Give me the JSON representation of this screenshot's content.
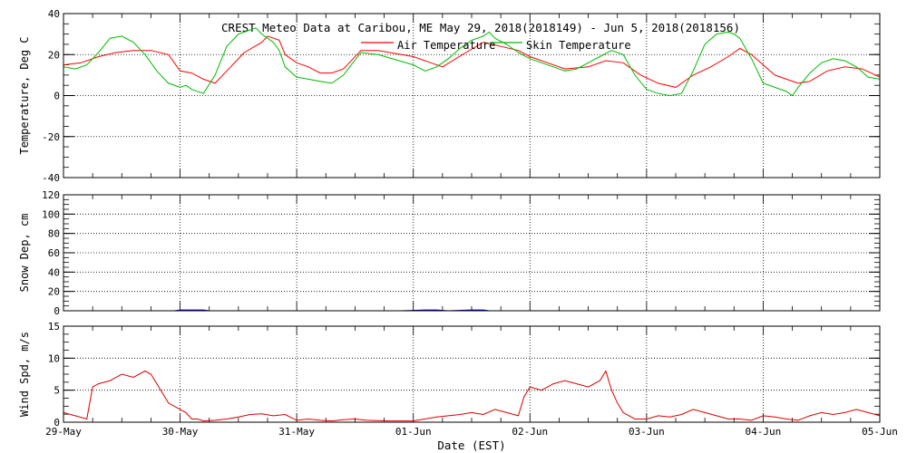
{
  "title": "CREST Meteo Data at Caribou, ME   May 29, 2018(2018149) - Jun  5, 2018(2018156)",
  "x_axis_label": "Date (EST)",
  "colors": {
    "air": "#ff0000",
    "skin": "#00bb00",
    "snow": "#0000cc",
    "wind": "#dd0000",
    "grid": "#000000"
  },
  "chart_data": [
    {
      "type": "line",
      "ylabel": "Temperature, Deg C",
      "ylim": [
        -40,
        40
      ],
      "yticks": [
        -40,
        -20,
        0,
        20,
        40
      ],
      "xlim": [
        0,
        7
      ],
      "xtick_labels": [
        "29-May",
        "30-May",
        "31-May",
        "01-Jun",
        "02-Jun",
        "03-Jun",
        "04-Jun",
        "05-Jun"
      ],
      "grid": true,
      "legend": {
        "placement": "top-center",
        "entries": [
          "Air Temperature",
          "Skin Temperature"
        ]
      },
      "series": [
        {
          "name": "Air Temperature",
          "x": [
            0,
            0.15,
            0.3,
            0.45,
            0.6,
            0.75,
            0.9,
            1.0,
            1.1,
            1.2,
            1.3,
            1.4,
            1.55,
            1.7,
            1.75,
            1.85,
            1.9,
            2.0,
            2.1,
            2.2,
            2.3,
            2.4,
            2.55,
            2.7,
            3.0,
            3.15,
            3.25,
            3.45,
            3.6,
            3.75,
            3.9,
            4.0,
            4.15,
            4.3,
            4.5,
            4.65,
            4.8,
            4.95,
            5.1,
            5.25,
            5.4,
            5.55,
            5.7,
            5.8,
            5.9,
            6.0,
            6.1,
            6.2,
            6.3,
            6.4,
            6.55,
            6.7,
            6.85,
            7.0
          ],
          "y": [
            15,
            16,
            19,
            21,
            22,
            22,
            20,
            12,
            11,
            8,
            6,
            12,
            21,
            26,
            29,
            27,
            20,
            16,
            14,
            11,
            11,
            13,
            22,
            22,
            19,
            16,
            14,
            21,
            26,
            24,
            22,
            19,
            16,
            13,
            14,
            17,
            16,
            10,
            6,
            4,
            10,
            14,
            19,
            23,
            20,
            15,
            10,
            8,
            6,
            7,
            12,
            14,
            13,
            9
          ]
        },
        {
          "name": "Skin Temperature",
          "x": [
            0,
            0.1,
            0.2,
            0.3,
            0.4,
            0.5,
            0.6,
            0.7,
            0.8,
            0.9,
            1.0,
            1.05,
            1.1,
            1.2,
            1.3,
            1.4,
            1.5,
            1.6,
            1.65,
            1.7,
            1.75,
            1.8,
            1.85,
            1.9,
            2.0,
            2.1,
            2.2,
            2.3,
            2.4,
            2.55,
            2.7,
            3.0,
            3.1,
            3.2,
            3.3,
            3.4,
            3.5,
            3.6,
            3.65,
            3.7,
            3.8,
            3.9,
            4.0,
            4.1,
            4.2,
            4.3,
            4.4,
            4.5,
            4.6,
            4.7,
            4.8,
            4.9,
            5.0,
            5.1,
            5.2,
            5.3,
            5.4,
            5.5,
            5.6,
            5.7,
            5.75,
            5.8,
            5.9,
            6.0,
            6.1,
            6.2,
            6.25,
            6.3,
            6.4,
            6.5,
            6.6,
            6.7,
            6.8,
            6.9,
            7.0
          ],
          "y": [
            14,
            13,
            15,
            21,
            28,
            29,
            26,
            20,
            12,
            6,
            4,
            5,
            3,
            1,
            10,
            24,
            30,
            32,
            33,
            30,
            28,
            26,
            22,
            14,
            9,
            8,
            7,
            6,
            10,
            21,
            20,
            15,
            12,
            14,
            18,
            23,
            27,
            29,
            31,
            28,
            25,
            21,
            18,
            16,
            14,
            12,
            13,
            16,
            19,
            22,
            20,
            10,
            3,
            1,
            0,
            1,
            12,
            25,
            30,
            31,
            30,
            28,
            18,
            6,
            4,
            2,
            0,
            4,
            11,
            16,
            18,
            17,
            14,
            9,
            8
          ]
        }
      ]
    },
    {
      "type": "line",
      "ylabel": "Snow Dep, cm",
      "ylim": [
        0,
        120
      ],
      "yticks": [
        0,
        20,
        40,
        60,
        80,
        100,
        120
      ],
      "xlim": [
        0,
        7
      ],
      "grid": true,
      "series": [
        {
          "x": [
            0,
            0.95,
            1.0,
            1.2,
            1.25,
            2.9,
            3.1,
            3.2,
            3.3,
            3.5,
            3.6,
            3.65,
            7.0
          ],
          "y": [
            0,
            0,
            0.8,
            0.8,
            0,
            0,
            0.8,
            0.8,
            0,
            0.8,
            0.8,
            0,
            0
          ]
        }
      ]
    },
    {
      "type": "line",
      "ylabel": "Wind Spd, m/s",
      "ylim": [
        0,
        15
      ],
      "yticks": [
        0,
        5,
        10,
        15
      ],
      "xlim": [
        0,
        7
      ],
      "grid": true,
      "series": [
        {
          "x": [
            0,
            0.1,
            0.2,
            0.25,
            0.3,
            0.4,
            0.5,
            0.6,
            0.7,
            0.75,
            0.8,
            0.9,
            1.0,
            1.05,
            1.1,
            1.15,
            1.2,
            1.3,
            1.4,
            1.5,
            1.6,
            1.7,
            1.8,
            1.9,
            2.0,
            2.1,
            2.2,
            2.3,
            2.4,
            2.5,
            2.6,
            2.8,
            3.0,
            3.2,
            3.3,
            3.4,
            3.5,
            3.6,
            3.7,
            3.8,
            3.9,
            3.95,
            4.0,
            4.1,
            4.2,
            4.3,
            4.4,
            4.5,
            4.6,
            4.65,
            4.7,
            4.75,
            4.8,
            4.9,
            5.0,
            5.1,
            5.2,
            5.3,
            5.4,
            5.5,
            5.6,
            5.7,
            5.8,
            5.9,
            6.0,
            6.1,
            6.2,
            6.3,
            6.4,
            6.5,
            6.6,
            6.7,
            6.8,
            6.9,
            7.0
          ],
          "y": [
            1.5,
            1,
            0.5,
            5.5,
            6,
            6.5,
            7.5,
            7,
            8,
            7.5,
            6,
            3,
            2,
            1.5,
            0.5,
            0.5,
            0.2,
            0.3,
            0.5,
            0.8,
            1.2,
            1.3,
            1.0,
            1.2,
            0.3,
            0.5,
            0.3,
            0.2,
            0.4,
            0.5,
            0.3,
            0.2,
            0.2,
            0.8,
            1.0,
            1.2,
            1.5,
            1.2,
            2.0,
            1.5,
            1.0,
            4.0,
            5.5,
            5.0,
            6.0,
            6.5,
            6.0,
            5.5,
            6.5,
            8.0,
            5.0,
            3.0,
            1.5,
            0.5,
            0.5,
            1.0,
            0.8,
            1.2,
            2.0,
            1.5,
            1.0,
            0.5,
            0.5,
            0.3,
            1.0,
            0.8,
            0.5,
            0.3,
            1.0,
            1.5,
            1.2,
            1.5,
            2.0,
            1.5,
            1.0
          ]
        }
      ]
    }
  ]
}
